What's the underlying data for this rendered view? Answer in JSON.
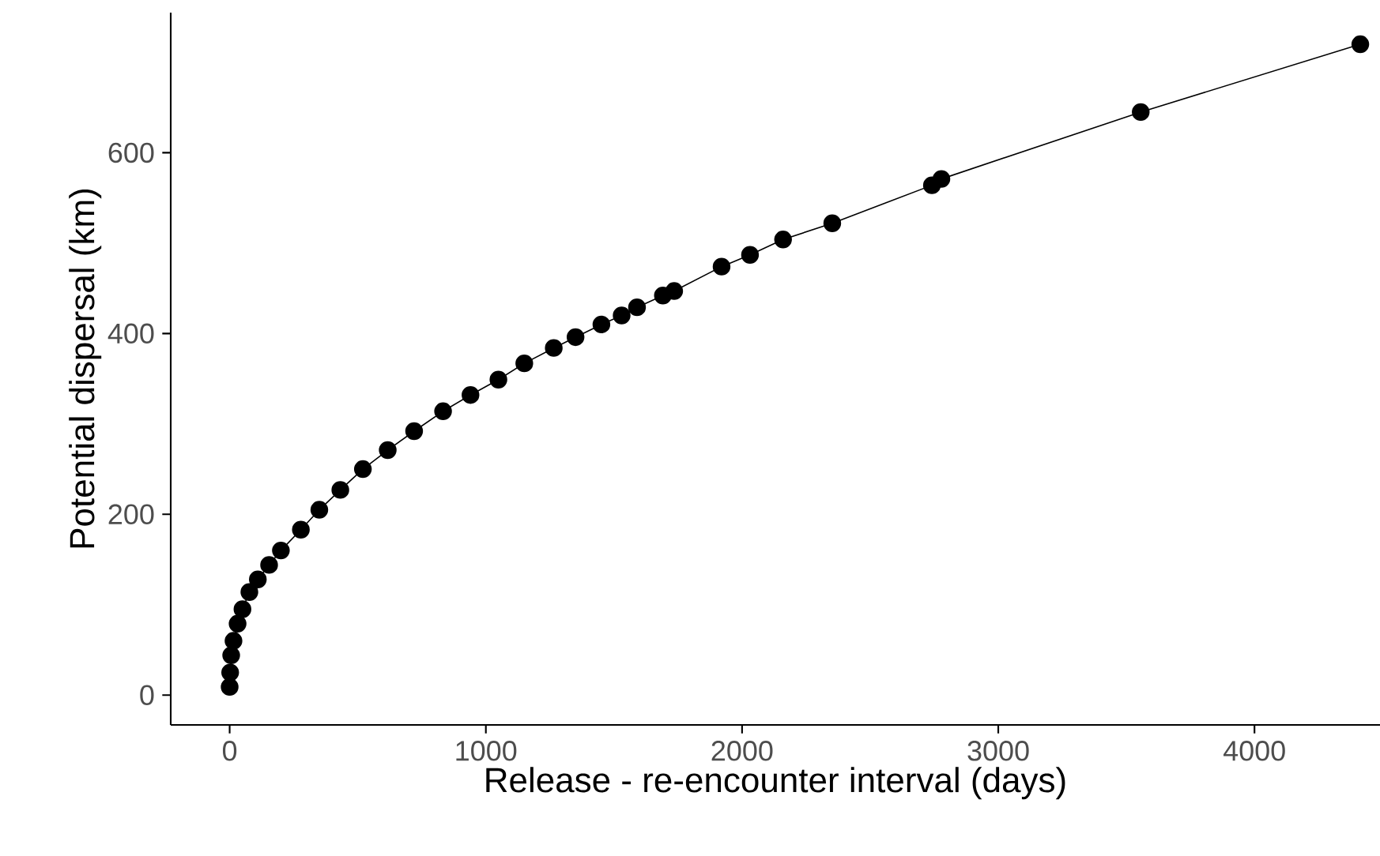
{
  "chart_data": {
    "type": "line",
    "xlabel": "Release - re-encounter interval (days)",
    "ylabel": "Potential dispersal (km)",
    "x": [
      0,
      2,
      6,
      15,
      31,
      50,
      77,
      110,
      154,
      200,
      278,
      350,
      432,
      520,
      617,
      720,
      833,
      940,
      1049,
      1150,
      1265,
      1350,
      1451,
      1530,
      1590,
      1691,
      1735,
      1920,
      2031,
      2160,
      2352,
      2741,
      2778,
      3556,
      4413
    ],
    "values": [
      9,
      25,
      44,
      60,
      79,
      95,
      114,
      128,
      144,
      160,
      183,
      205,
      227,
      250,
      271,
      292,
      314,
      332,
      349,
      367,
      384,
      396,
      410,
      420,
      429,
      442,
      447,
      474,
      487,
      504,
      522,
      564,
      571,
      645,
      720
    ],
    "color": "#000000",
    "marker": "circle",
    "line_style": "solid",
    "xlim": [
      -230,
      4490
    ],
    "ylim": [
      -33,
      755
    ],
    "xticks": [
      0,
      1000,
      2000,
      3000,
      4000
    ],
    "yticks": [
      0,
      200,
      400,
      600
    ]
  }
}
